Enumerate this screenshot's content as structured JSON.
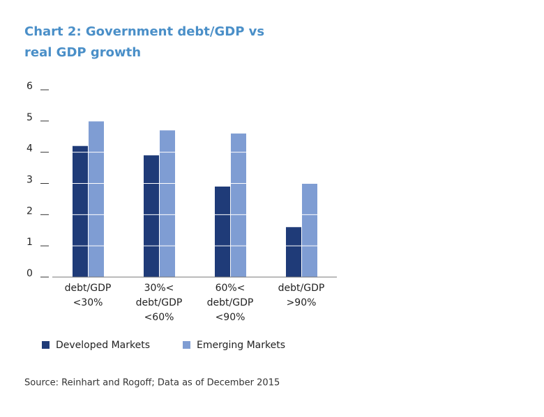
{
  "chart_data": {
    "type": "bar",
    "title_lines": [
      "Chart 2: Government debt/GDP vs",
      "real GDP growth"
    ],
    "categories": [
      [
        "debt/GDP",
        "<30%"
      ],
      [
        "30%<",
        "debt/GDP",
        "<60%"
      ],
      [
        "60%<",
        "debt/GDP",
        "<90%"
      ],
      [
        "debt/GDP",
        ">90%"
      ]
    ],
    "series": [
      {
        "name": "Developed Markets",
        "color": "#1f3b78",
        "values": [
          4.2,
          3.9,
          2.9,
          1.6
        ]
      },
      {
        "name": "Emerging Markets",
        "color": "#7f9dd3",
        "values": [
          5.0,
          4.7,
          4.6,
          3.0
        ]
      }
    ],
    "ylim": [
      0,
      6
    ],
    "yticks": [
      0,
      1,
      2,
      3,
      4,
      5,
      6
    ],
    "grid": true,
    "source": "Source: Reinhart and Rogoff; Data as of December 2015"
  }
}
